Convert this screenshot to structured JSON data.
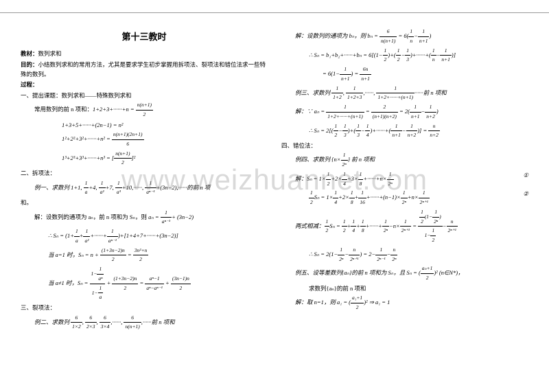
{
  "watermark": "www.weizhuannet.com",
  "title": "第十三教时",
  "left": {
    "material_label": "教材：",
    "material": "数列求和",
    "goal_label": "目的：",
    "goal": "小结数列求和的常用方法，尤其是要求学生初步掌握用拆项法、裂项法和错位法求一些特殊的数列。",
    "process_label": "过程：",
    "s1": "一、提出课题：数列求和——特殊数列求和",
    "s1a": "常用数列的前 n 项和：",
    "f1": "1+2+3+······+n =",
    "f1r": "n(n+1)",
    "f1d": "2",
    "f2": "1+3+5+······+(2n−1) = n²",
    "f3": "1²+2²+3²+······+n² =",
    "f3r": "n(n+1)(2n+1)",
    "f3d": "6",
    "f4": "1³+2³+3³+······+n³ = [",
    "f4r": "n(n+1)",
    "f4d": "2",
    "f4e": "]²",
    "s2": "二、拆项法：",
    "ex1": "例一、求数列 1+1,",
    "ex1m": "+4,",
    "ex1m2": "+7,",
    "ex1m3": "+10,······,",
    "ex1e": "+(3n−2),······的前 n 项",
    "he": "和。",
    "sol": "解：设数列的通项为 aₙ，前 n 项和为 Sₙ，则",
    "sol_an": "aₙ =",
    "sol_an2": "+ (3n−2)",
    "sn1": "∴ Sₙ = (1+",
    "sn1m": "+······+",
    "sn1e": ")+[1+4+7+······+(3n−2)]",
    "case1": "当 a=1 时，Sₙ = n +",
    "case1n": "(1+3n−2)n",
    "case1d": "2",
    "case1eq": "=",
    "case1rn": "3n²+n",
    "case1rd": "2",
    "case2": "当 a≠1 时，Sₙ =",
    "case2p": "+",
    "case2n2": "(1+3n−2)n",
    "case2d2": "2",
    "case2eq": "=",
    "case2rn": "aⁿ−1",
    "case2rd": "aⁿ−aⁿ⁻¹",
    "case2p2": "+",
    "case2r2n": "(3n−1)n",
    "case2r2d": "2",
    "s3": "三、裂项法：",
    "ex2": "例二、求数列",
    "ex2e": ",······前 n 项和"
  },
  "right": {
    "sol2": "解：设数列的通项为 bₙ，则 bₙ =",
    "b_eq": "= 6(",
    "b_eq2": "−",
    "b_eq3": ")",
    "sn": "∴ Sₙ = b₁+b₂+······+bₙ = 6[(1−",
    "sn_m": ")+(",
    "sn_e": ")+······+(",
    "sn_e2": ")]",
    "sn2": "= 6(1−",
    "sn2e": ") =",
    "sn2rn": "6n",
    "sn2rd": "n+1",
    "ex3": "例三、求数列",
    "ex3e": "······前 n 项和",
    "sol3": "解：∵ aₙ =",
    "sol3eq": "=",
    "sol3eq2": "= 2(",
    "sol3eq3": "−",
    "sol3eq4": ")",
    "sn3": "∴ Sₙ = 2[(",
    "sn3m": ")+(",
    "sn3m2": ")+······+(",
    "sn3e": ")] =",
    "sn3rn": "n",
    "sn3rd": "n+2",
    "s4": "四、错位法：",
    "ex4": "例四、求数列 {n×",
    "ex4e": "} 前 n 项和",
    "sol4": "解：Sₙ = 1×",
    "sol4m": "+2×",
    "sol4m2": "+3×",
    "sol4e": "+······+n×",
    "circ1": "①",
    "half_sn": "Sₙ = 1×",
    "half_m": "+2×",
    "half_e": "+······+(n−1)×",
    "half_e2": "+n×",
    "circ2": "②",
    "sub": "两式相减：",
    "sub_sn": "Sₙ =",
    "sub_m": "+",
    "sub_e": "+······+",
    "sub_e2": "−n×",
    "sub_eq": "=",
    "final": "∴ Sₙ = 2(1−",
    "final_m": "−",
    "final_e": ") = 2−",
    "final_e2": "−",
    "ex5": "例五、设等差数列{aₙ}的前 n 项和为 Sₙ，且 Sₙ = (",
    "ex5n": "aₙ+1",
    "ex5d": "2",
    "ex5e": ")² (n∈N*)，",
    "ex5q": "求数列{aₙ}的前 n 项和",
    "sol5": "解：取 n=1，则 a₁ = (",
    "sol5n": "a₁+1",
    "sol5d": "2",
    "sol5e": ")² ⇒ a₁ = 1"
  }
}
